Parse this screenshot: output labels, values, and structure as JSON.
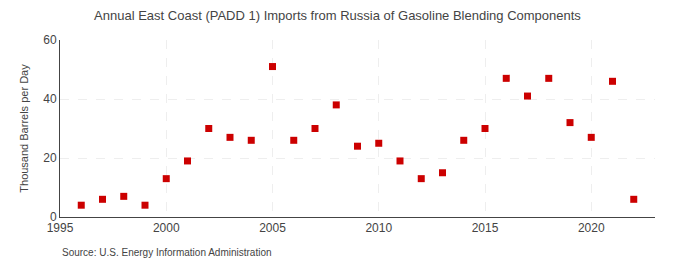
{
  "chart_data": {
    "type": "scatter",
    "title": "Annual East Coast (PADD 1) Imports from Russia of Gasoline Blending Components",
    "ylabel": "Thousand Barrels per Day",
    "annotations": [
      "Source: U.S. Energy Information Administration"
    ],
    "x": [
      1996,
      1997,
      1998,
      1999,
      2000,
      2001,
      2002,
      2003,
      2004,
      2005,
      2006,
      2007,
      2008,
      2009,
      2010,
      2011,
      2012,
      2013,
      2014,
      2015,
      2016,
      2017,
      2018,
      2019,
      2020,
      2021,
      2022
    ],
    "values": [
      4,
      6,
      7,
      4,
      13,
      19,
      30,
      27,
      26,
      51,
      26,
      30,
      38,
      24,
      25,
      19,
      13,
      15,
      26,
      30,
      47,
      41,
      47,
      32,
      27,
      46,
      6
    ],
    "color": "#cc0000",
    "marker": "square",
    "xlim": [
      1995,
      2023
    ],
    "xticks": [
      1995,
      2000,
      2005,
      2010,
      2015,
      2020
    ],
    "ylim": [
      0,
      60
    ],
    "yticks": [
      0,
      20,
      40,
      60
    ],
    "grid": true
  }
}
